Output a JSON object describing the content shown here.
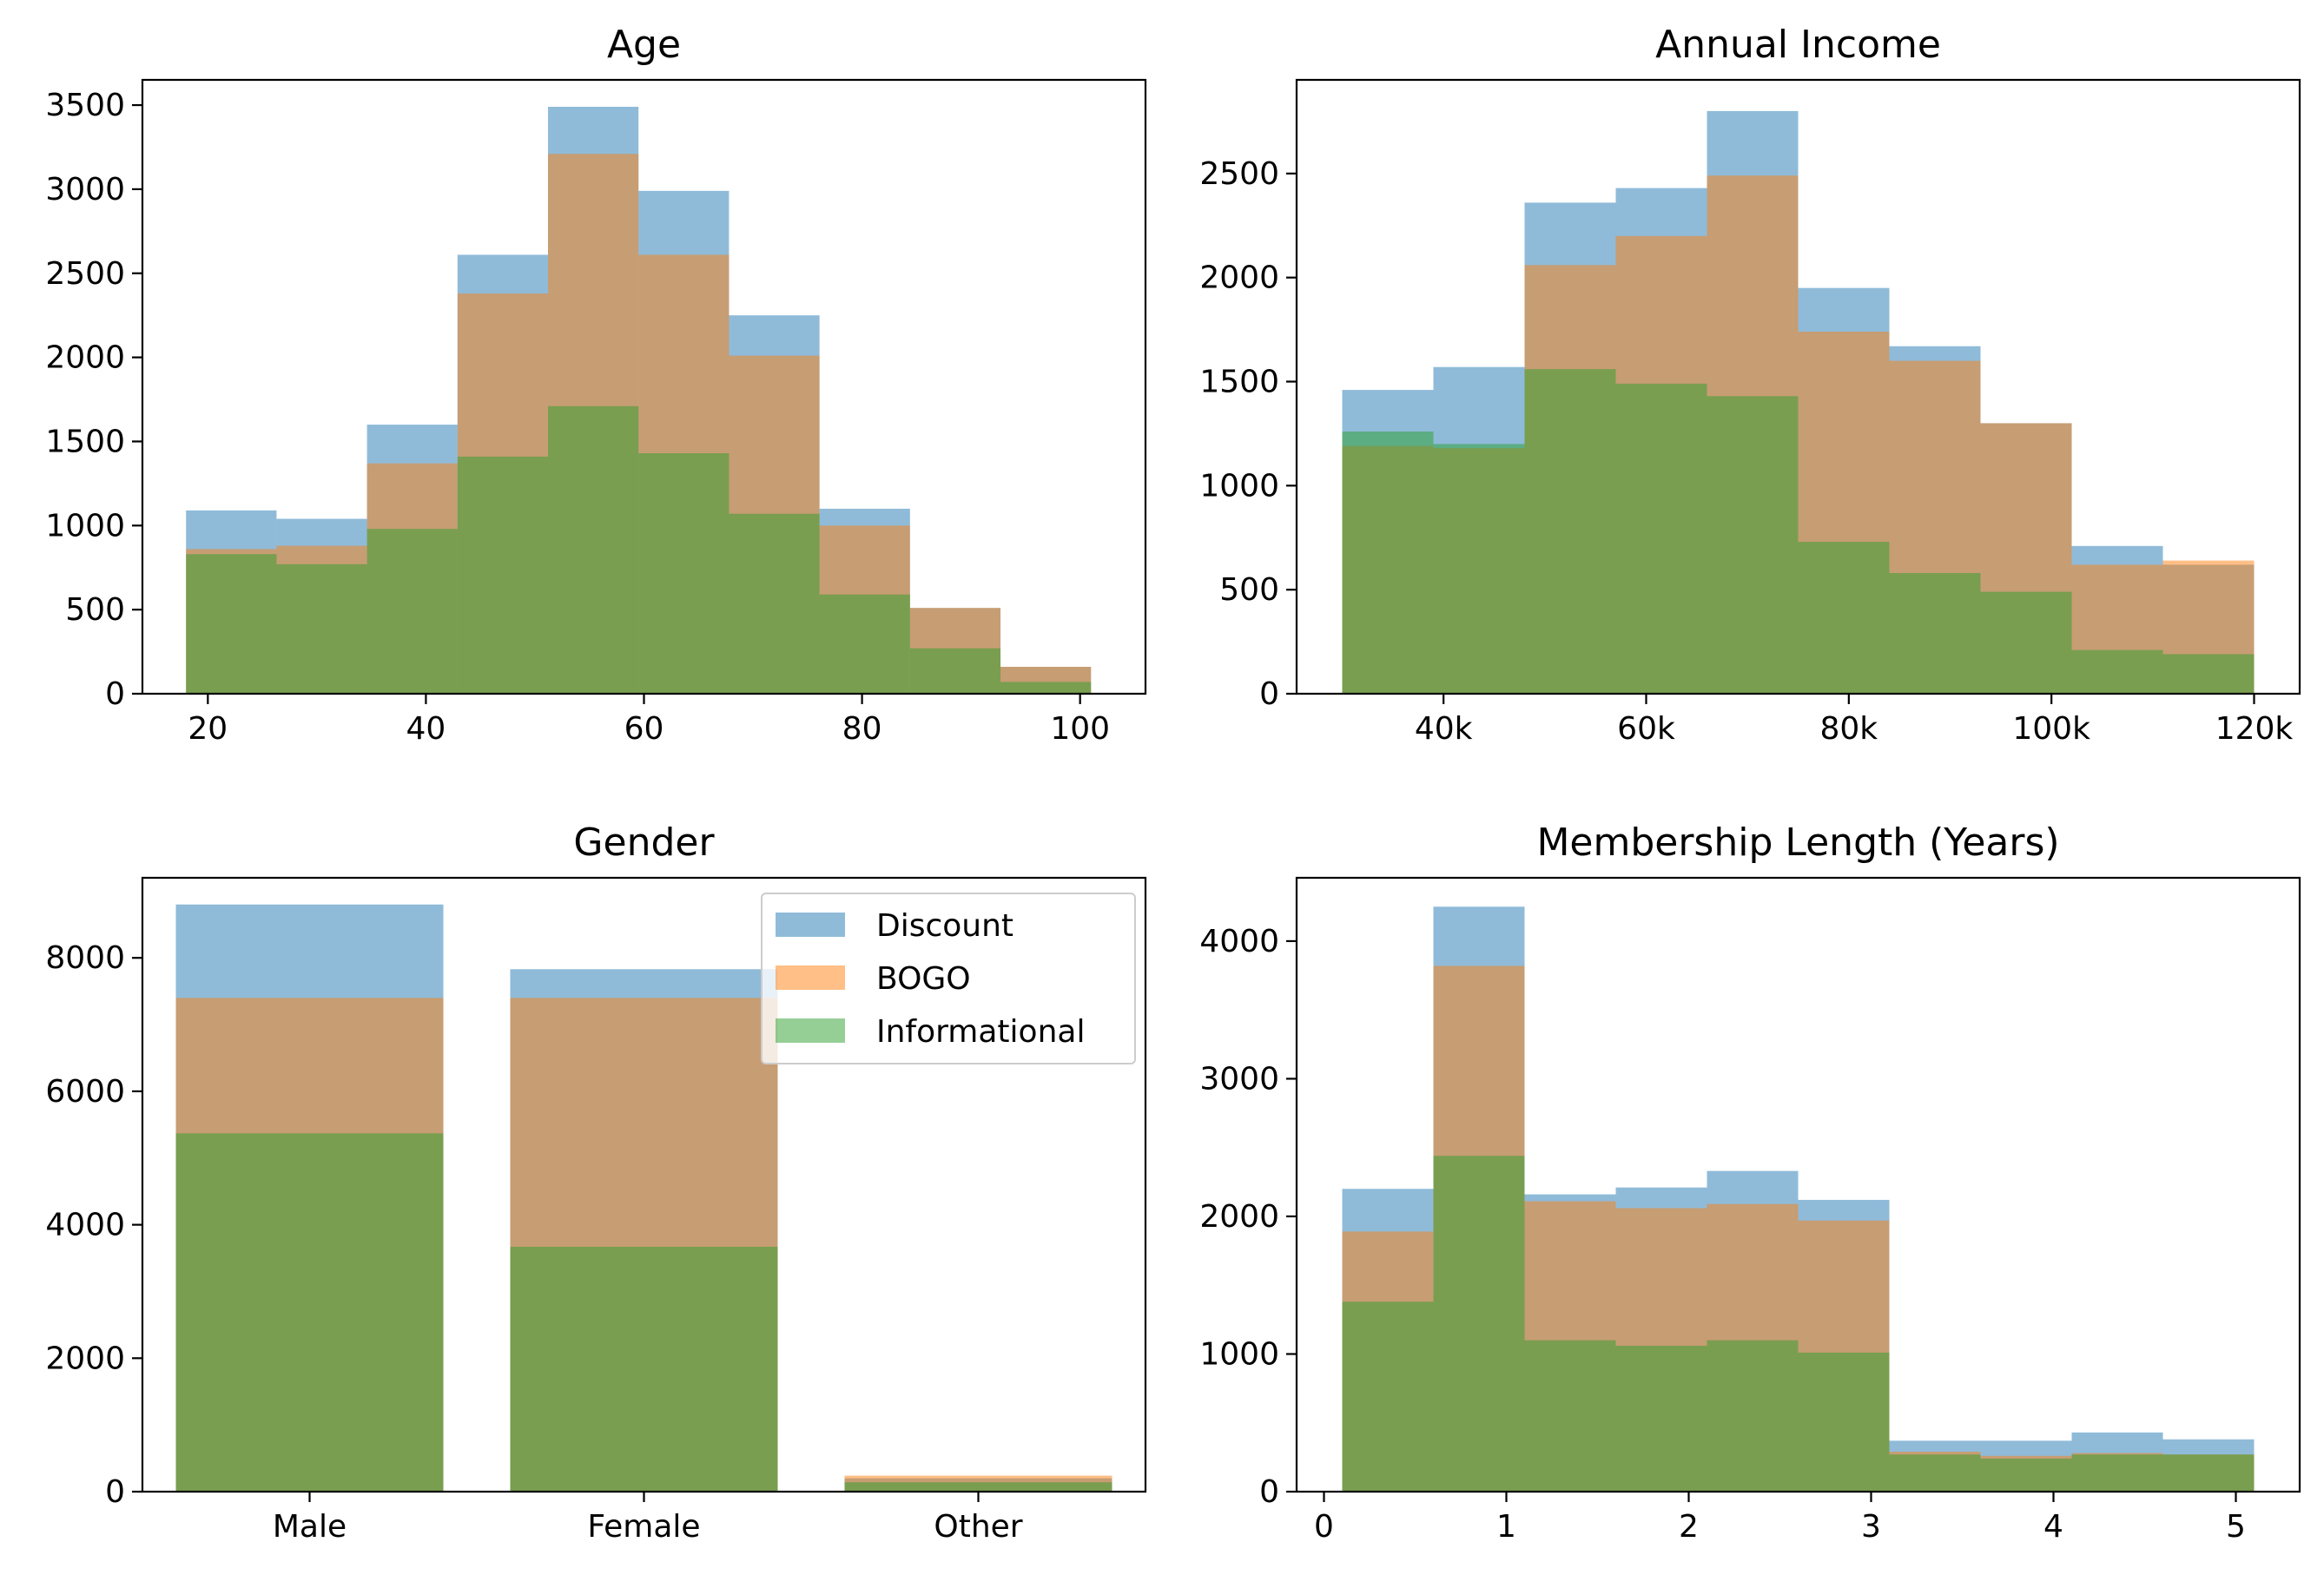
{
  "legend": {
    "entries": [
      {
        "label": "Discount",
        "color": "#1f77b4"
      },
      {
        "label": "BOGO",
        "color": "#ff7f0e"
      },
      {
        "label": "Informational",
        "color": "#2ca02c"
      }
    ]
  },
  "chart_data": [
    {
      "id": "age",
      "type": "bar",
      "title": "Age",
      "xlabel": "",
      "ylabel": "",
      "histogram": true,
      "bin_edges": [
        18,
        26.3,
        34.6,
        42.9,
        51.2,
        59.5,
        67.8,
        76.1,
        84.4,
        92.7,
        101
      ],
      "xlim": [
        14,
        106
      ],
      "ylim": [
        0,
        3650
      ],
      "xticks": [
        20,
        40,
        60,
        80,
        100
      ],
      "xtick_labels": [
        "20",
        "40",
        "60",
        "80",
        "100"
      ],
      "yticks": [
        0,
        500,
        1000,
        1500,
        2000,
        2500,
        3000,
        3500
      ],
      "ytick_labels": [
        "0",
        "500",
        "1000",
        "1500",
        "2000",
        "2500",
        "3000",
        "3500"
      ],
      "series": [
        {
          "name": "Discount",
          "values": [
            1090,
            1040,
            1600,
            2610,
            3490,
            2990,
            2250,
            1100,
            510,
            160
          ]
        },
        {
          "name": "BOGO",
          "values": [
            860,
            880,
            1370,
            2380,
            3210,
            2610,
            2010,
            1000,
            510,
            160
          ]
        },
        {
          "name": "Informational",
          "values": [
            830,
            770,
            980,
            1410,
            1710,
            1430,
            1070,
            590,
            270,
            70
          ]
        }
      ],
      "grid": false
    },
    {
      "id": "income",
      "type": "bar",
      "title": "Annual Income",
      "xlabel": "",
      "ylabel": "",
      "histogram": true,
      "bin_edges": [
        30000,
        39000,
        48000,
        57000,
        66000,
        75000,
        84000,
        93000,
        102000,
        111000,
        120000
      ],
      "xlim": [
        25500,
        124500
      ],
      "ylim": [
        0,
        2950
      ],
      "xticks": [
        40000,
        60000,
        80000,
        100000,
        120000
      ],
      "xtick_labels": [
        "40k",
        "60k",
        "80k",
        "100k",
        "120k"
      ],
      "yticks": [
        0,
        500,
        1000,
        1500,
        2000,
        2500
      ],
      "ytick_labels": [
        "0",
        "500",
        "1000",
        "1500",
        "2000",
        "2500"
      ],
      "series": [
        {
          "name": "Discount",
          "values": [
            1460,
            1570,
            2360,
            2430,
            2800,
            1950,
            1670,
            1300,
            710,
            620
          ]
        },
        {
          "name": "BOGO",
          "values": [
            1190,
            1180,
            2060,
            2200,
            2490,
            1740,
            1600,
            1300,
            620,
            640
          ]
        },
        {
          "name": "Informational",
          "values": [
            1260,
            1200,
            1560,
            1490,
            1430,
            730,
            580,
            490,
            210,
            190
          ]
        }
      ],
      "grid": false
    },
    {
      "id": "gender",
      "type": "bar",
      "title": "Gender",
      "xlabel": "",
      "ylabel": "",
      "histogram": false,
      "categories": [
        "Male",
        "Female",
        "Other"
      ],
      "ylim": [
        0,
        9200
      ],
      "yticks": [
        0,
        2000,
        4000,
        6000,
        8000
      ],
      "ytick_labels": [
        "0",
        "2000",
        "4000",
        "6000",
        "8000"
      ],
      "series": [
        {
          "name": "Discount",
          "values": [
            8800,
            7830,
            200
          ]
        },
        {
          "name": "BOGO",
          "values": [
            7400,
            7400,
            240
          ]
        },
        {
          "name": "Informational",
          "values": [
            5370,
            3670,
            140
          ]
        }
      ],
      "legend_position": "upper right",
      "grid": false
    },
    {
      "id": "membership",
      "type": "bar",
      "title": "Membership Length (Years)",
      "xlabel": "",
      "ylabel": "",
      "histogram": true,
      "bin_edges": [
        0.1,
        0.6,
        1.1,
        1.6,
        2.1,
        2.6,
        3.1,
        3.6,
        4.1,
        4.6,
        5.1
      ],
      "xlim": [
        -0.15,
        5.35
      ],
      "ylim": [
        0,
        4460
      ],
      "xticks": [
        0,
        1,
        2,
        3,
        4,
        5
      ],
      "xtick_labels": [
        "0",
        "1",
        "2",
        "3",
        "4",
        "5"
      ],
      "yticks": [
        0,
        1000,
        2000,
        3000,
        4000
      ],
      "ytick_labels": [
        "0",
        "1000",
        "2000",
        "3000",
        "4000"
      ],
      "series": [
        {
          "name": "Discount",
          "values": [
            2200,
            4250,
            2160,
            2210,
            2330,
            2120,
            370,
            370,
            430,
            380
          ]
        },
        {
          "name": "BOGO",
          "values": [
            1890,
            3820,
            2110,
            2060,
            2090,
            1970,
            290,
            260,
            280,
            270
          ]
        },
        {
          "name": "Informational",
          "values": [
            1380,
            2440,
            1100,
            1060,
            1100,
            1010,
            270,
            240,
            270,
            270
          ]
        }
      ],
      "grid": false
    }
  ]
}
